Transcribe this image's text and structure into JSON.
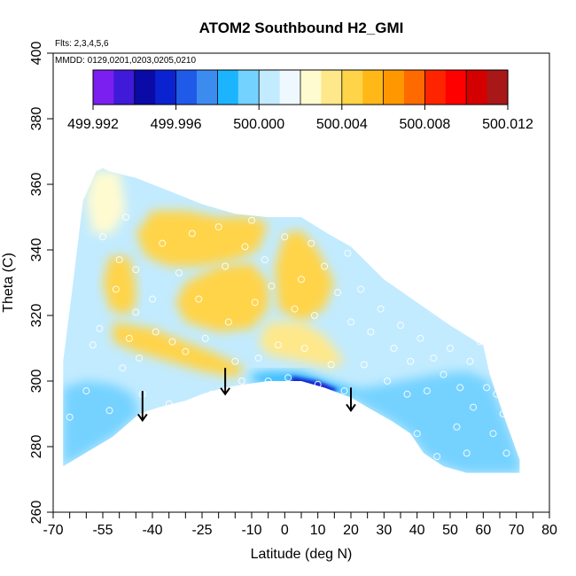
{
  "chart_data": {
    "type": "heatmap",
    "title": "ATOM2 Southbound H2_GMI",
    "flights_note": "Flts: 2,3,4,5,6",
    "dates_note": "MMDD: 0129,0201,0203,0205,0210",
    "xlabel": "Latitude (deg N)",
    "ylabel": "Theta (C)",
    "xlim": [
      -70,
      80
    ],
    "ylim": [
      260,
      400
    ],
    "x_ticks": [
      {
        "v": -70,
        "label": "-70"
      },
      {
        "v": -55,
        "label": "-55"
      },
      {
        "v": -40,
        "label": "-40"
      },
      {
        "v": -25,
        "label": "-25"
      },
      {
        "v": -10,
        "label": "-10"
      },
      {
        "v": 0,
        "label": "0"
      },
      {
        "v": 10,
        "label": "10"
      },
      {
        "v": 20,
        "label": "20"
      },
      {
        "v": 30,
        "label": "30"
      },
      {
        "v": 40,
        "label": "40"
      },
      {
        "v": 50,
        "label": "50"
      },
      {
        "v": 60,
        "label": "60"
      },
      {
        "v": 70,
        "label": "70"
      },
      {
        "v": 80,
        "label": "80"
      }
    ],
    "x_minor_ticks": [
      -65,
      -60,
      -50,
      -45,
      -35,
      -30,
      -20,
      -15,
      -5,
      5,
      15,
      25,
      35,
      45,
      55,
      65,
      75
    ],
    "y_ticks": [
      {
        "v": 260,
        "label": "260"
      },
      {
        "v": 280,
        "label": "280"
      },
      {
        "v": 300,
        "label": "300"
      },
      {
        "v": 320,
        "label": "320"
      },
      {
        "v": 340,
        "label": "340"
      },
      {
        "v": 360,
        "label": "360"
      },
      {
        "v": 380,
        "label": "380"
      },
      {
        "v": 400,
        "label": "400"
      }
    ],
    "colorbar": {
      "min": 499.992,
      "max": 500.012,
      "tick_values": [
        499.992,
        499.996,
        500.0,
        500.004,
        500.008,
        500.012
      ],
      "tick_labels": [
        "499.992",
        "499.996",
        "500.000",
        "500.004",
        "500.008",
        "500.012"
      ],
      "colors": [
        "#7a1ff0",
        "#3f1ad8",
        "#0a0aa6",
        "#0a22d0",
        "#1f5ae8",
        "#3c8cf0",
        "#1cb4ff",
        "#74d2ff",
        "#c2ebff",
        "#f0f8ff",
        "#fffbd0",
        "#ffe88a",
        "#ffd448",
        "#ffb818",
        "#ff9800",
        "#ff6a00",
        "#ff2400",
        "#ff0000",
        "#d40000",
        "#a81818"
      ]
    },
    "domain_outline": [
      [
        -67,
        306
      ],
      [
        -64,
        330
      ],
      [
        -61,
        355
      ],
      [
        -57,
        364
      ],
      [
        -55,
        365
      ],
      [
        -53,
        364
      ],
      [
        -45,
        362
      ],
      [
        -35,
        358
      ],
      [
        -25,
        354
      ],
      [
        -15,
        351
      ],
      [
        -5,
        350
      ],
      [
        5,
        350
      ],
      [
        13,
        345
      ],
      [
        20,
        341
      ],
      [
        25,
        336
      ],
      [
        30,
        331
      ],
      [
        40,
        324
      ],
      [
        50,
        317
      ],
      [
        58,
        312
      ],
      [
        60,
        311
      ],
      [
        62,
        302
      ],
      [
        66,
        290
      ],
      [
        71,
        276
      ],
      [
        71,
        272
      ],
      [
        55,
        272
      ],
      [
        48,
        274
      ],
      [
        42,
        278
      ],
      [
        38,
        284
      ],
      [
        32,
        288
      ],
      [
        25,
        292
      ],
      [
        20,
        295
      ],
      [
        12,
        298
      ],
      [
        5,
        300
      ],
      [
        -5,
        300
      ],
      [
        -12,
        299
      ],
      [
        -18,
        298
      ],
      [
        -25,
        296
      ],
      [
        -30,
        294
      ],
      [
        -38,
        292
      ],
      [
        -44,
        290
      ],
      [
        -52,
        283
      ],
      [
        -62,
        277
      ],
      [
        -67,
        274
      ]
    ],
    "regions": [
      {
        "name": "background",
        "value": 500.0006,
        "points": [
          [
            -67,
            306
          ],
          [
            -64,
            330
          ],
          [
            -61,
            355
          ],
          [
            -57,
            364
          ],
          [
            -55,
            365
          ],
          [
            -53,
            364
          ],
          [
            -45,
            362
          ],
          [
            -35,
            358
          ],
          [
            -25,
            354
          ],
          [
            -15,
            351
          ],
          [
            -5,
            350
          ],
          [
            5,
            350
          ],
          [
            13,
            345
          ],
          [
            20,
            341
          ],
          [
            25,
            336
          ],
          [
            30,
            331
          ],
          [
            40,
            324
          ],
          [
            50,
            317
          ],
          [
            58,
            312
          ],
          [
            60,
            311
          ],
          [
            62,
            302
          ],
          [
            66,
            290
          ],
          [
            71,
            276
          ],
          [
            71,
            272
          ],
          [
            55,
            272
          ],
          [
            48,
            274
          ],
          [
            42,
            278
          ],
          [
            38,
            284
          ],
          [
            32,
            288
          ],
          [
            25,
            292
          ],
          [
            20,
            295
          ],
          [
            12,
            298
          ],
          [
            5,
            300
          ],
          [
            -5,
            300
          ],
          [
            -12,
            299
          ],
          [
            -18,
            298
          ],
          [
            -25,
            296
          ],
          [
            -30,
            294
          ],
          [
            -38,
            292
          ],
          [
            -44,
            290
          ],
          [
            -52,
            283
          ],
          [
            -62,
            277
          ],
          [
            -67,
            274
          ]
        ]
      },
      {
        "name": "low-south-blue",
        "value": 499.999,
        "points": [
          [
            -67,
            298
          ],
          [
            -60,
            300
          ],
          [
            -52,
            299
          ],
          [
            -46,
            296
          ],
          [
            -44,
            290
          ],
          [
            -52,
            283
          ],
          [
            -62,
            277
          ],
          [
            -67,
            274
          ]
        ]
      },
      {
        "name": "low-north-blue",
        "value": 499.999,
        "points": [
          [
            12,
            298
          ],
          [
            20,
            295
          ],
          [
            25,
            292
          ],
          [
            32,
            288
          ],
          [
            38,
            284
          ],
          [
            42,
            278
          ],
          [
            48,
            274
          ],
          [
            55,
            272
          ],
          [
            71,
            272
          ],
          [
            71,
            276
          ],
          [
            66,
            290
          ],
          [
            62,
            300
          ],
          [
            55,
            303
          ],
          [
            45,
            302
          ],
          [
            35,
            300
          ],
          [
            25,
            298
          ]
        ]
      },
      {
        "name": "cyan-trough",
        "value": 499.9986,
        "points": [
          [
            -10,
            302
          ],
          [
            -5,
            302.5
          ],
          [
            5,
            302.5
          ],
          [
            12,
            300
          ],
          [
            20,
            297
          ],
          [
            18,
            295
          ],
          [
            12,
            296.5
          ],
          [
            5,
            298.5
          ],
          [
            -5,
            299
          ],
          [
            -10,
            300
          ]
        ]
      },
      {
        "name": "upper-pale-south",
        "value": 500.002,
        "points": [
          [
            -58,
            364
          ],
          [
            -50,
            364
          ],
          [
            -48,
            352
          ],
          [
            -52,
            345
          ],
          [
            -58,
            345
          ],
          [
            -60,
            355
          ]
        ]
      },
      {
        "name": "yellow-main-upper",
        "value": 500.0046,
        "points": [
          [
            -40,
            352
          ],
          [
            -30,
            352
          ],
          [
            -20,
            350
          ],
          [
            -10,
            350
          ],
          [
            -5,
            348
          ],
          [
            -8,
            340
          ],
          [
            -15,
            337
          ],
          [
            -25,
            335
          ],
          [
            -35,
            335
          ],
          [
            -42,
            338
          ],
          [
            -45,
            345
          ]
        ]
      },
      {
        "name": "yellow-south-patch",
        "value": 500.005,
        "points": [
          [
            -53,
            338
          ],
          [
            -47,
            338
          ],
          [
            -45,
            330
          ],
          [
            -45,
            323
          ],
          [
            -48,
            320
          ],
          [
            -53,
            322
          ],
          [
            -55,
            330
          ]
        ]
      },
      {
        "name": "yellow-mid-centre",
        "value": 500.0044,
        "points": [
          [
            -30,
            330
          ],
          [
            -20,
            335
          ],
          [
            -10,
            336
          ],
          [
            -5,
            330
          ],
          [
            -5,
            322
          ],
          [
            -10,
            316
          ],
          [
            -20,
            315
          ],
          [
            -30,
            318
          ],
          [
            -33,
            324
          ]
        ]
      },
      {
        "name": "yellow-north-centre",
        "value": 500.004,
        "points": [
          [
            0,
            345
          ],
          [
            5,
            346
          ],
          [
            10,
            340
          ],
          [
            15,
            330
          ],
          [
            12,
            322
          ],
          [
            5,
            318
          ],
          [
            -2,
            322
          ],
          [
            -3,
            335
          ]
        ]
      },
      {
        "name": "yellow-lower-band",
        "value": 500.0044,
        "points": [
          [
            -52,
            318
          ],
          [
            -40,
            316
          ],
          [
            -30,
            312
          ],
          [
            -20,
            308
          ],
          [
            -12,
            304
          ],
          [
            -15,
            301
          ],
          [
            -25,
            303
          ],
          [
            -35,
            306
          ],
          [
            -45,
            309
          ],
          [
            -52,
            312
          ]
        ]
      },
      {
        "name": "yellow-lower-north",
        "value": 500.0036,
        "points": [
          [
            -5,
            318
          ],
          [
            5,
            318
          ],
          [
            12,
            314
          ],
          [
            18,
            306
          ],
          [
            14,
            304
          ],
          [
            5,
            306
          ],
          [
            -5,
            308
          ],
          [
            -8,
            312
          ]
        ]
      },
      {
        "name": "dark-trough-core",
        "value": 499.9954,
        "points": [
          [
            2,
            301.5
          ],
          [
            10,
            300
          ],
          [
            16,
            297.5
          ],
          [
            14,
            296
          ],
          [
            8,
            297.5
          ],
          [
            2,
            299
          ]
        ]
      },
      {
        "name": "darkest-spot",
        "value": 499.9936,
        "points": [
          [
            8,
            299
          ],
          [
            12,
            298.5
          ],
          [
            13,
            297
          ],
          [
            9,
            297.5
          ]
        ]
      }
    ],
    "obs_points": [
      [
        -65,
        289
      ],
      [
        -63,
        275
      ],
      [
        -60,
        297
      ],
      [
        -58,
        311
      ],
      [
        -56,
        316
      ],
      [
        -55,
        344
      ],
      [
        -53,
        291
      ],
      [
        -51,
        328
      ],
      [
        -50,
        337
      ],
      [
        -49,
        304
      ],
      [
        -48,
        350
      ],
      [
        -47,
        313
      ],
      [
        -45,
        334
      ],
      [
        -45,
        321
      ],
      [
        -44,
        307
      ],
      [
        -43,
        296
      ],
      [
        -41,
        285
      ],
      [
        -40,
        325
      ],
      [
        -39,
        315
      ],
      [
        -37,
        342
      ],
      [
        -35,
        293
      ],
      [
        -34,
        312
      ],
      [
        -32,
        333
      ],
      [
        -30,
        309
      ],
      [
        -28,
        345
      ],
      [
        -26,
        325
      ],
      [
        -24,
        313
      ],
      [
        -22,
        296
      ],
      [
        -20,
        347
      ],
      [
        -18,
        335
      ],
      [
        -17,
        318
      ],
      [
        -15,
        306
      ],
      [
        -13,
        300
      ],
      [
        -12,
        341
      ],
      [
        -10,
        349
      ],
      [
        -9,
        324
      ],
      [
        -8,
        307
      ],
      [
        -6,
        337
      ],
      [
        -5,
        300
      ],
      [
        -4,
        329
      ],
      [
        -2,
        311
      ],
      [
        0,
        344
      ],
      [
        1,
        301
      ],
      [
        3,
        322
      ],
      [
        5,
        331
      ],
      [
        6,
        310
      ],
      [
        8,
        342
      ],
      [
        9,
        320
      ],
      [
        10,
        299
      ],
      [
        12,
        335
      ],
      [
        14,
        305
      ],
      [
        16,
        327
      ],
      [
        18,
        297
      ],
      [
        19,
        339
      ],
      [
        20,
        318
      ],
      [
        22,
        292
      ],
      [
        23,
        328
      ],
      [
        24,
        305
      ],
      [
        26,
        315
      ],
      [
        28,
        288
      ],
      [
        29,
        322
      ],
      [
        31,
        300
      ],
      [
        33,
        310
      ],
      [
        35,
        317
      ],
      [
        37,
        296
      ],
      [
        38,
        306
      ],
      [
        40,
        284
      ],
      [
        41,
        313
      ],
      [
        43,
        297
      ],
      [
        45,
        307
      ],
      [
        46,
        277
      ],
      [
        48,
        302
      ],
      [
        50,
        310
      ],
      [
        52,
        286
      ],
      [
        53,
        298
      ],
      [
        55,
        278
      ],
      [
        56,
        306
      ],
      [
        57,
        292
      ],
      [
        59,
        312
      ],
      [
        61,
        298
      ],
      [
        63,
        284
      ],
      [
        64,
        296
      ],
      [
        66,
        290
      ],
      [
        67,
        278
      ]
    ],
    "arrows": [
      {
        "x": -43,
        "y_top": 297,
        "y_tip": 288
      },
      {
        "x": -18,
        "y_top": 304,
        "y_tip": 296
      },
      {
        "x": 20,
        "y_top": 298,
        "y_tip": 291
      }
    ]
  }
}
